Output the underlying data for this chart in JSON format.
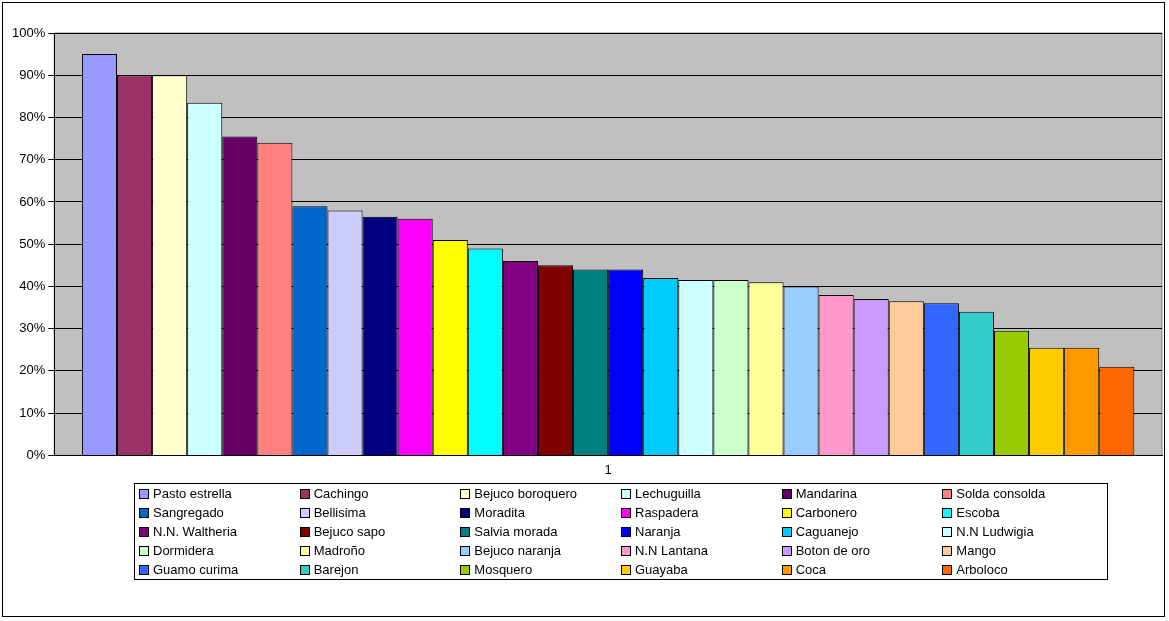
{
  "chart_data": {
    "type": "bar",
    "categories": [
      "1"
    ],
    "series": [
      {
        "name": "Pasto estrella",
        "color": "#9999ff",
        "values": [
          95
        ]
      },
      {
        "name": "Cachingo",
        "color": "#993366",
        "values": [
          90
        ]
      },
      {
        "name": "Bejuco boroquero",
        "color": "#ffffcc",
        "values": [
          90
        ]
      },
      {
        "name": "Lechuguilla",
        "color": "#ccffff",
        "values": [
          83.5
        ]
      },
      {
        "name": "Mandarina",
        "color": "#660066",
        "values": [
          75.5
        ]
      },
      {
        "name": "Solda consolda",
        "color": "#ff8080",
        "values": [
          74
        ]
      },
      {
        "name": "Sangregado",
        "color": "#0066cc",
        "values": [
          59
        ]
      },
      {
        "name": "Bellisima",
        "color": "#ccccff",
        "values": [
          58
        ]
      },
      {
        "name": "Moradita",
        "color": "#000080",
        "values": [
          56.5
        ]
      },
      {
        "name": "Raspadera",
        "color": "#ff00ff",
        "values": [
          56
        ]
      },
      {
        "name": "Carbonero",
        "color": "#ffff00",
        "values": [
          51
        ]
      },
      {
        "name": "Escoba",
        "color": "#00ffff",
        "values": [
          49
        ]
      },
      {
        "name": "N.N. Waltheria",
        "color": "#800080",
        "values": [
          46
        ]
      },
      {
        "name": "Bejuco sapo",
        "color": "#800000",
        "values": [
          45
        ]
      },
      {
        "name": "Salvia morada",
        "color": "#008080",
        "values": [
          44
        ]
      },
      {
        "name": "Naranja",
        "color": "#0000ff",
        "values": [
          44
        ]
      },
      {
        "name": "Caguanejo",
        "color": "#00ccff",
        "values": [
          42
        ]
      },
      {
        "name": "N.N Ludwigia",
        "color": "#ccffff",
        "values": [
          41.5
        ]
      },
      {
        "name": "Dormidera",
        "color": "#ccffcc",
        "values": [
          41.5
        ]
      },
      {
        "name": "Madroño",
        "color": "#ffff99",
        "values": [
          41
        ]
      },
      {
        "name": "Bejuco naranja",
        "color": "#99ccff",
        "values": [
          40
        ]
      },
      {
        "name": "N.N Lantana",
        "color": "#ff99cc",
        "values": [
          38
        ]
      },
      {
        "name": "Boton de oro",
        "color": "#cc99ff",
        "values": [
          37
        ]
      },
      {
        "name": "Mango",
        "color": "#ffcc99",
        "values": [
          36.5
        ]
      },
      {
        "name": "Guamo curima",
        "color": "#3366ff",
        "values": [
          36
        ]
      },
      {
        "name": "Barejon",
        "color": "#33cccc",
        "values": [
          34
        ]
      },
      {
        "name": "Mosquero",
        "color": "#99cc00",
        "values": [
          29.5
        ]
      },
      {
        "name": "Guayaba",
        "color": "#ffcc00",
        "values": [
          25.5
        ]
      },
      {
        "name": "Coca",
        "color": "#ff9900",
        "values": [
          25.5
        ]
      },
      {
        "name": "Arboloco",
        "color": "#ff6600",
        "values": [
          21
        ]
      }
    ],
    "ylim": [
      0,
      100
    ],
    "yticks": [
      {
        "value": 0,
        "label": "0%"
      },
      {
        "value": 10,
        "label": "10%"
      },
      {
        "value": 20,
        "label": "20%"
      },
      {
        "value": 30,
        "label": "30%"
      },
      {
        "value": 40,
        "label": "40%"
      },
      {
        "value": 50,
        "label": "50%"
      },
      {
        "value": 60,
        "label": "60%"
      },
      {
        "value": 70,
        "label": "70%"
      },
      {
        "value": 80,
        "label": "80%"
      },
      {
        "value": 90,
        "label": "90%"
      },
      {
        "value": 100,
        "label": "100%"
      }
    ],
    "grid": "y",
    "legend": "bottom"
  }
}
